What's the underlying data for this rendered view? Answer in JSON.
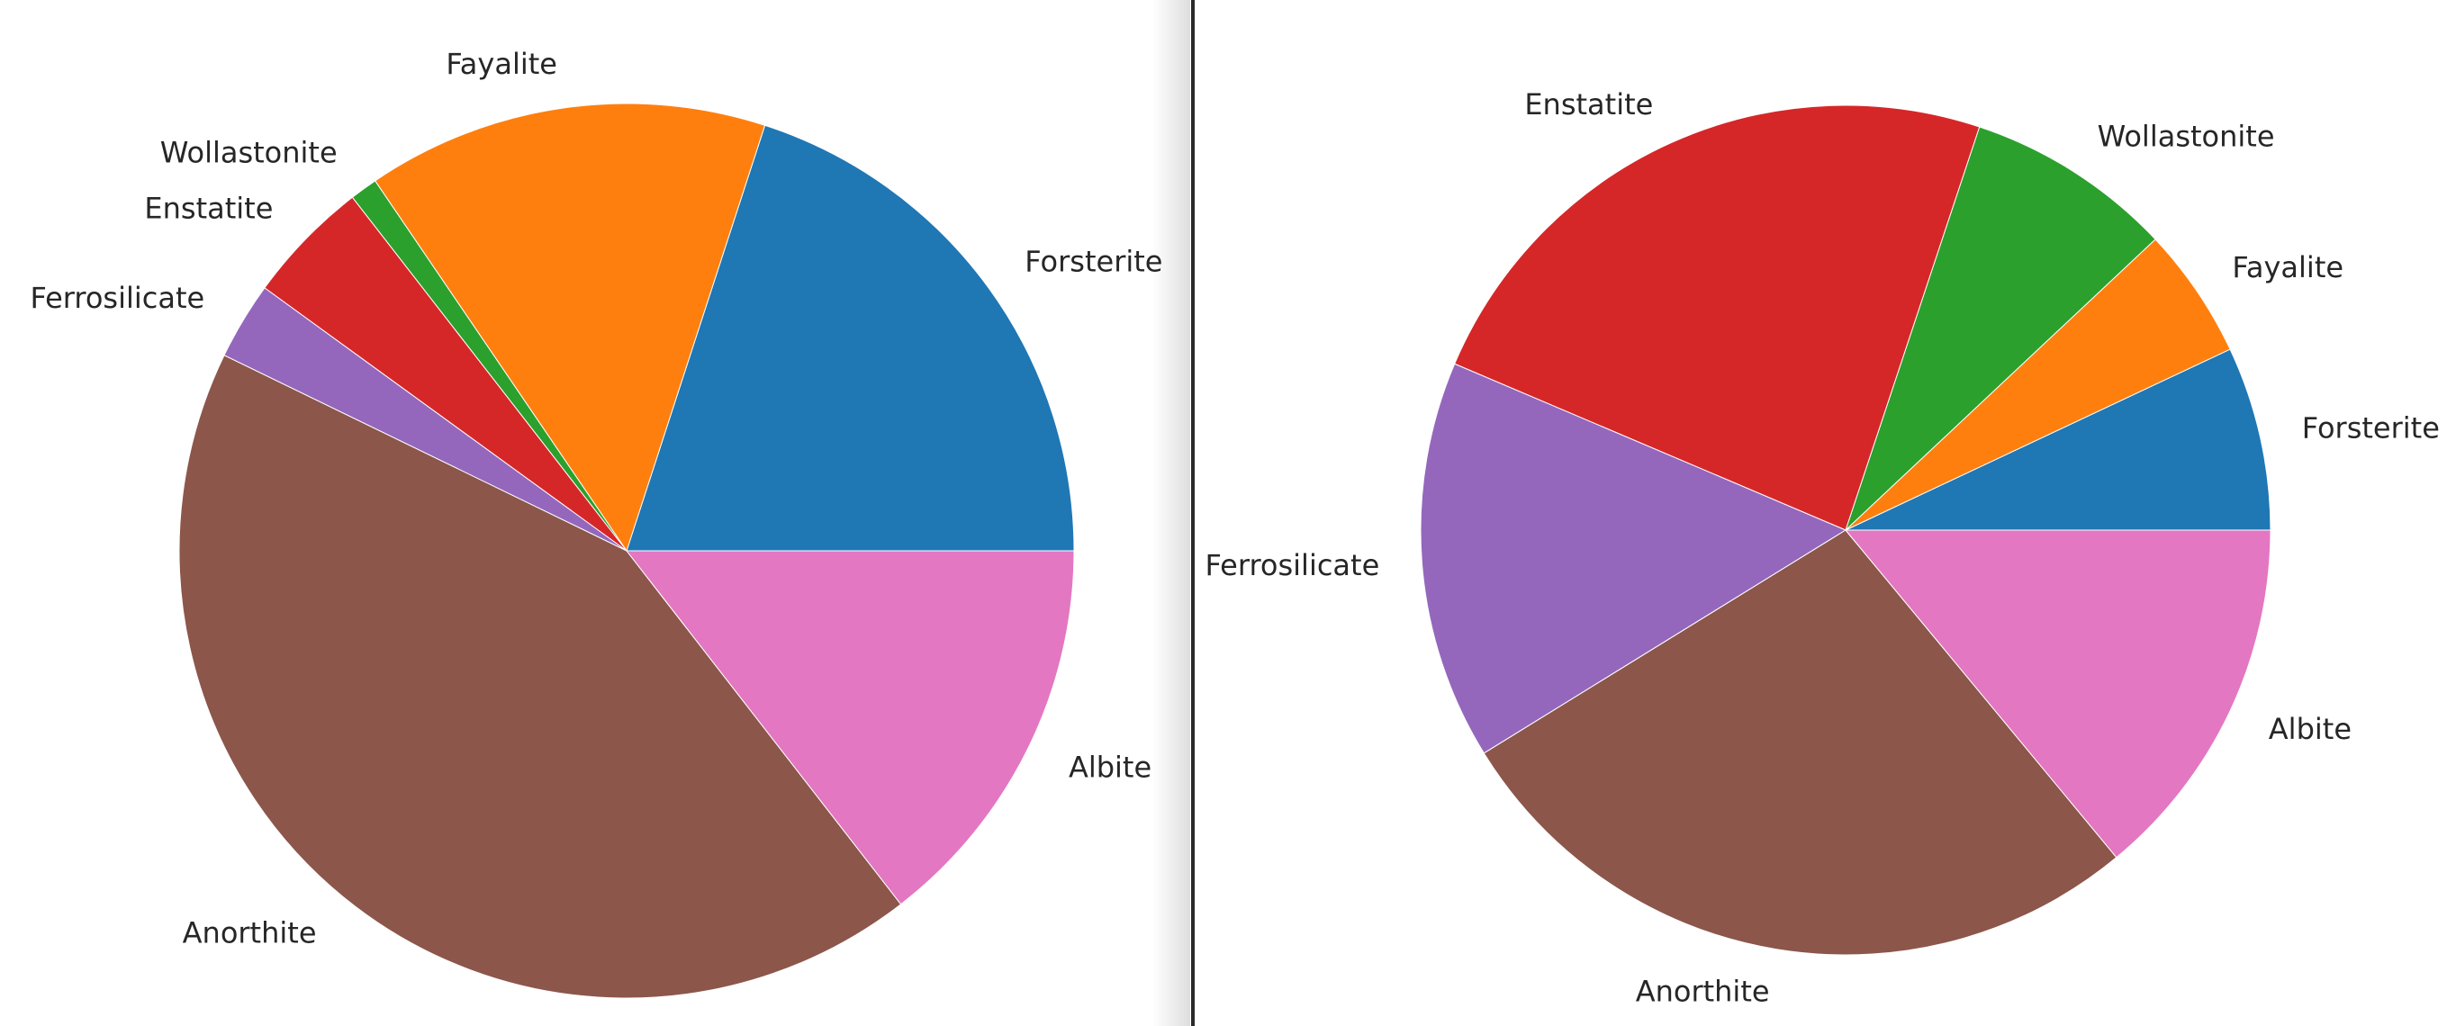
{
  "chart_data": [
    {
      "type": "pie",
      "title": "",
      "categories": [
        "Forsterite",
        "Fayalite",
        "Wollastonite",
        "Enstatite",
        "Ferrosilicate",
        "Anorthite",
        "Albite"
      ],
      "values": [
        20.0,
        14.5,
        1.0,
        4.5,
        2.8,
        42.7,
        14.5
      ],
      "colors": [
        "#1f77b4",
        "#ff7f0e",
        "#2ca02c",
        "#d62728",
        "#9467bd",
        "#8c564b",
        "#e377c2"
      ],
      "start_angle_deg": 0,
      "direction": "counterclockwise"
    },
    {
      "type": "pie",
      "title": "",
      "categories": [
        "Forsterite",
        "Fayalite",
        "Wollastonite",
        "Enstatite",
        "Ferrosilicate",
        "Anorthite",
        "Albite"
      ],
      "values": [
        7.0,
        5.0,
        7.9,
        23.7,
        15.2,
        27.2,
        14.0
      ],
      "colors": [
        "#1f77b4",
        "#ff7f0e",
        "#2ca02c",
        "#d62728",
        "#9467bd",
        "#8c564b",
        "#e377c2"
      ],
      "start_angle_deg": 0,
      "direction": "counterclockwise"
    }
  ]
}
